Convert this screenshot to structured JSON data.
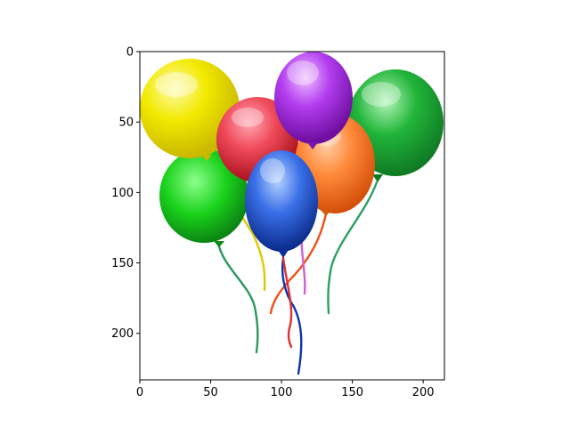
{
  "figure": {
    "description_kind": "image-display-with-pixel-axes",
    "colors": {
      "background": "#ffffff",
      "axes_frame": "#000000"
    }
  },
  "axes": {
    "x_ticks": [
      0,
      50,
      100,
      150,
      200
    ],
    "y_ticks": [
      0,
      50,
      100,
      150,
      200
    ],
    "x_range": [
      0,
      215
    ],
    "y_range": [
      233,
      0
    ]
  },
  "balloons": [
    {
      "name": "yellow",
      "base": "#f2ea00",
      "light": "#fffb9a",
      "dark": "#c9b800"
    },
    {
      "name": "green-left",
      "base": "#19d11a",
      "light": "#8cff8c",
      "dark": "#0a8a12"
    },
    {
      "name": "green-right",
      "base": "#22b53a",
      "light": "#9cf1a4",
      "dark": "#0f7a24"
    },
    {
      "name": "red",
      "base": "#ef3c4a",
      "light": "#ff9aa4",
      "dark": "#b4121f"
    },
    {
      "name": "orange",
      "base": "#ff8a3a",
      "light": "#ffc59a",
      "dark": "#d45a10"
    },
    {
      "name": "blue",
      "base": "#2f63e0",
      "light": "#9cc0ff",
      "dark": "#0c2f9a"
    },
    {
      "name": "purple",
      "base": "#b33df0",
      "light": "#e7a8ff",
      "dark": "#7a15b0"
    }
  ]
}
